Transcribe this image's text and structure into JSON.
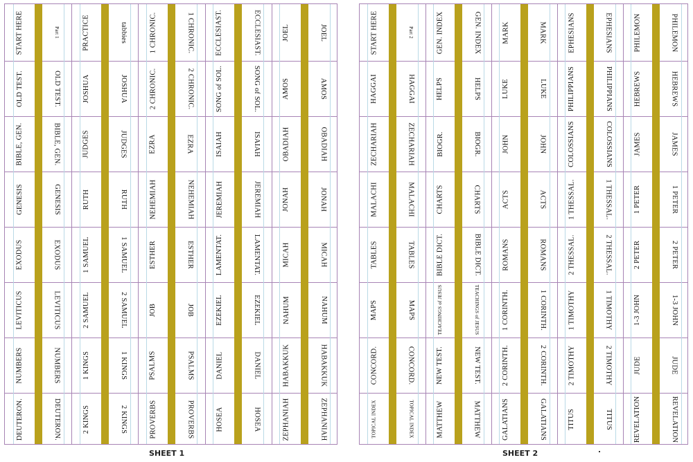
{
  "sheets": [
    {
      "label": "SHEET 1",
      "columns": [
        {
          "a": "START HERE",
          "b": "Part 1",
          "a2": [
            "OLD TEST.",
            "BIBLE, GEN.",
            "GENESIS",
            "EXODUS",
            "LEVITICUS",
            "NUMBERS",
            "DEUTERON."
          ],
          "b2": [
            "OLD TEST.",
            "BIBLE, GEN.",
            "GENESIS",
            "EXODUS",
            "LEVITICUS",
            "NUMBERS",
            "DEUTERON."
          ]
        },
        {
          "a": "PRACTICE",
          "b": "tabbies",
          "a2": [
            "JOSHUA",
            "JUDGES",
            "RUTH",
            "1 SAMUEL",
            "2 SAMUEL",
            "1 KINGS",
            "2 KINGS"
          ],
          "b2": [
            "JOSHUA",
            "JUDGES",
            "RUTH",
            "1 SAMUEL",
            "2 SAMUEL",
            "1 KINGS",
            "2 KINGS"
          ]
        },
        {
          "a": "1 CHRONIC.",
          "b": "1 CHRONIC.",
          "a2": [
            "2 CHRONIC.",
            "EZRA",
            "NEHEMIAH",
            "ESTHER",
            "JOB",
            "PSALMS",
            "PROVERBS"
          ],
          "b2": [
            "2 CHRONIC.",
            "EZRA",
            "NEHEMIAH",
            "ESTHER",
            "JOB",
            "PSALMS",
            "PROVERBS"
          ]
        },
        {
          "a": "ECCLESIAST.",
          "b": "ECCLESIAST.",
          "a2": [
            "SONG of SOL.",
            "ISAIAH",
            "JEREMIAH",
            "LAMENTAT.",
            "EZEKIEL",
            "DANIEL",
            "HOSEA"
          ],
          "b2": [
            "SONG of SOL.",
            "ISAIAH",
            "JEREMIAH",
            "LAMENTAT.",
            "EZEKIEL",
            "DANIEL",
            "HOSEA"
          ]
        },
        {
          "a": "JOEL",
          "b": "JOEL",
          "a2": [
            "AMOS",
            "OBADIAH",
            "JONAH",
            "MICAH",
            "NAHUM",
            "HABAKKUK",
            "ZEPHANIAH"
          ],
          "b2": [
            "AMOS",
            "OBADIAH",
            "JONAH",
            "MICAH",
            "NAHUM",
            "HABAKKUK",
            "ZEPHANIAH"
          ]
        }
      ]
    },
    {
      "label": "SHEET 2",
      "columns": [
        {
          "a": "START HERE",
          "b": "Part 2",
          "a2": [
            "HAGGAI",
            "ZECHARIAH",
            "MALACHI",
            "TABLES",
            "MAPS",
            "CONCORD.",
            "TOPICAL INDEX"
          ],
          "b2": [
            "HAGGAI",
            "ZECHARIAH",
            "MALACHI",
            "TABLES",
            "MAPS",
            "CONCORD.",
            "TOPICAL INDEX"
          ]
        },
        {
          "a": "GEN. INDEX",
          "b": "GEN. INDEX",
          "a2": [
            "HELPS",
            "BIOGR.",
            "CHARTS",
            "BIBLE DICT.",
            "TEACHINGS of JESUS",
            "NEW TEST.",
            "MATTHEW"
          ],
          "b2": [
            "HELPS",
            "BIOGR.",
            "CHARTS",
            "BIBLE DICT.",
            "TEACHINGS of JESUS",
            "NEW TEST.",
            "MATTHEW"
          ]
        },
        {
          "a": "MARK",
          "b": "MARK",
          "a2": [
            "LUKE",
            "JOHN",
            "ACTS",
            "ROMANS",
            "1 CORINTH.",
            "2 CORINTH.",
            "GALATIANS"
          ],
          "b2": [
            "LUKE",
            "JOHN",
            "ACTS",
            "ROMANS",
            "1 CORINTH.",
            "2 CORINTH.",
            "GALATIANS"
          ]
        },
        {
          "a": "EPHESIANS",
          "b": "EPHESIANS",
          "a2": [
            "PHILIPPIANS",
            "COLOSSIANS",
            "1 THESSAL.",
            "2 THESSAL.",
            "1 TIMOTHY",
            "2 TIMOTHY",
            "TITUS"
          ],
          "b2": [
            "PHILIPPIANS",
            "COLOSSIANS",
            "1 THESSAL.",
            "2 THESSAL.",
            "1 TIMOTHY",
            "2 TIMOTHY",
            "TITUS"
          ]
        },
        {
          "a": "PHILEMON",
          "b": "PHILEMON",
          "a2": [
            "HEBREWS",
            "JAMES",
            "1 PETER",
            "2 PETER",
            "1-3 JOHN",
            "JUDE",
            "REVELATION"
          ],
          "b2": [
            "HEBREWS",
            "JAMES",
            "1 PETER",
            "2 PETER",
            "1-3 JOHN",
            "JUDE",
            "REVELATION"
          ]
        }
      ]
    }
  ]
}
